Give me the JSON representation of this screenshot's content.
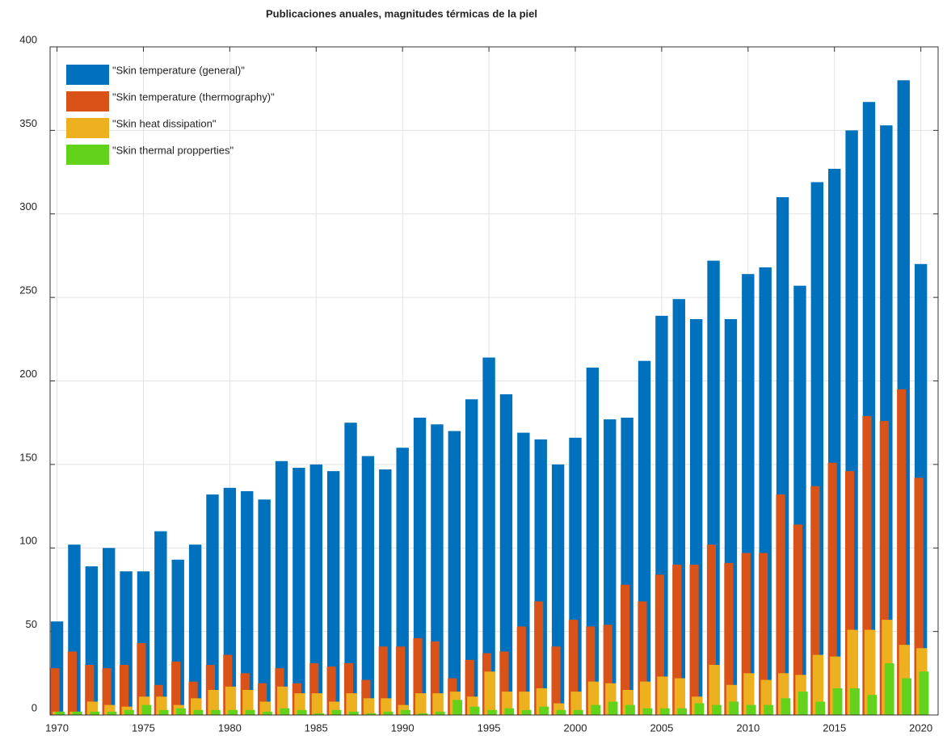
{
  "chart_data": {
    "type": "bar",
    "title": "Publicaciones anuales, magnitudes térmicas de la piel",
    "x": [
      1970,
      1971,
      1972,
      1973,
      1974,
      1975,
      1976,
      1977,
      1978,
      1979,
      1980,
      1981,
      1982,
      1983,
      1984,
      1985,
      1986,
      1987,
      1988,
      1989,
      1990,
      1991,
      1992,
      1993,
      1994,
      1995,
      1996,
      1997,
      1998,
      1999,
      2000,
      2001,
      2002,
      2003,
      2004,
      2005,
      2006,
      2007,
      2008,
      2009,
      2010,
      2011,
      2012,
      2013,
      2014,
      2015,
      2016,
      2017,
      2018,
      2019,
      2020
    ],
    "series": [
      {
        "name": "\"Skin temperature (general)\"",
        "color": "#0072bd",
        "values": [
          56,
          102,
          89,
          100,
          86,
          86,
          110,
          93,
          102,
          132,
          136,
          134,
          129,
          152,
          148,
          150,
          146,
          175,
          155,
          147,
          160,
          178,
          174,
          170,
          189,
          214,
          192,
          169,
          165,
          150,
          166,
          208,
          177,
          178,
          212,
          239,
          249,
          237,
          272,
          237,
          264,
          268,
          310,
          257,
          319,
          327,
          350,
          367,
          353,
          380,
          270
        ]
      },
      {
        "name": "\"Skin temperature (thermography)\"",
        "color": "#d95319",
        "values": [
          28,
          38,
          30,
          28,
          30,
          43,
          18,
          32,
          20,
          30,
          36,
          25,
          19,
          28,
          19,
          31,
          29,
          31,
          21,
          41,
          41,
          46,
          44,
          22,
          33,
          37,
          38,
          53,
          68,
          41,
          57,
          53,
          54,
          78,
          68,
          84,
          90,
          90,
          102,
          91,
          97,
          97,
          132,
          114,
          137,
          151,
          146,
          179,
          176,
          195,
          142
        ]
      },
      {
        "name": "\"Skin heat dissipation\"",
        "color": "#edb120",
        "values": [
          2,
          2,
          8,
          6,
          5,
          11,
          11,
          6,
          10,
          15,
          17,
          15,
          8,
          17,
          13,
          13,
          8,
          13,
          10,
          10,
          6,
          13,
          13,
          14,
          11,
          26,
          14,
          14,
          16,
          7,
          14,
          20,
          19,
          15,
          20,
          23,
          22,
          11,
          30,
          18,
          25,
          21,
          25,
          24,
          36,
          35,
          51,
          51,
          57,
          42,
          40
        ]
      },
      {
        "name": "\"Skin thermal propperties\"",
        "color": "#62d31a",
        "values": [
          2,
          2,
          2,
          2,
          3,
          6,
          3,
          4,
          3,
          3,
          3,
          3,
          2,
          4,
          3,
          1,
          3,
          2,
          1,
          2,
          3,
          1,
          2,
          9,
          5,
          3,
          4,
          3,
          5,
          3,
          3,
          6,
          8,
          6,
          4,
          4,
          4,
          7,
          6,
          8,
          6,
          6,
          10,
          14,
          8,
          16,
          16,
          12,
          31,
          22,
          26
        ]
      }
    ],
    "xlim": [
      1969.6,
      2021
    ],
    "xticks": [
      1970,
      1975,
      1980,
      1985,
      1990,
      1995,
      2000,
      2005,
      2010,
      2015,
      2020
    ],
    "ylim": [
      0,
      400
    ],
    "yticks": [
      0,
      50,
      100,
      150,
      200,
      250,
      300,
      350,
      400
    ],
    "grid": true,
    "legend": "upper-left"
  }
}
